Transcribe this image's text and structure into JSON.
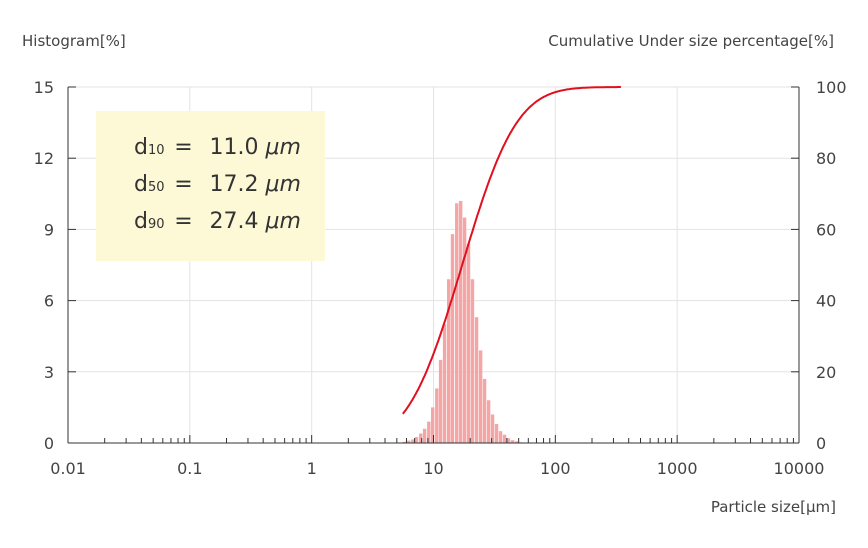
{
  "chart_data": {
    "type": "bar",
    "y_left_label": "Histogram[%]",
    "y_right_label": "Cumulative Under size percentage[%]",
    "xlabel": "Particle size[μm]",
    "x_scale": "log",
    "xlim": [
      0.01,
      10000
    ],
    "x_ticks": [
      "0.01",
      "0.1",
      "1",
      "10",
      "100",
      "1000",
      "10000"
    ],
    "ylim_left": [
      0,
      15
    ],
    "y_left_ticks": [
      "0",
      "3",
      "6",
      "9",
      "12",
      "15"
    ],
    "ylim_right": [
      0,
      100
    ],
    "y_right_ticks": [
      "0",
      "20",
      "40",
      "60",
      "80",
      "100"
    ],
    "grid": true,
    "histogram": {
      "color": "#f4a6a6",
      "x": [
        5.8,
        6.3,
        6.8,
        7.3,
        7.9,
        8.5,
        9.2,
        9.9,
        10.7,
        11.5,
        12.4,
        13.4,
        14.4,
        15.6,
        16.8,
        18.1,
        19.5,
        21.0,
        22.7,
        24.5,
        26.4,
        28.5,
        30.7,
        33.1,
        35.7,
        38.5,
        41.5,
        44.8,
        48.3,
        52.1
      ],
      "values": [
        0.05,
        0.1,
        0.15,
        0.25,
        0.4,
        0.6,
        0.9,
        1.5,
        2.3,
        3.5,
        5.0,
        6.9,
        8.8,
        10.1,
        10.2,
        9.5,
        8.4,
        6.9,
        5.3,
        3.9,
        2.7,
        1.8,
        1.2,
        0.8,
        0.5,
        0.35,
        0.2,
        0.12,
        0.07,
        0.03
      ]
    },
    "cumulative": {
      "color": "#e0101e",
      "median": 17.2,
      "sigma_log": 0.35
    }
  },
  "stats": [
    {
      "label": "d",
      "sub": "10",
      "eq": "=",
      "value": "11.0",
      "unit": "μm"
    },
    {
      "label": "d",
      "sub": "50",
      "eq": "=",
      "value": "17.2",
      "unit": "μm"
    },
    {
      "label": "d",
      "sub": "90",
      "eq": "=",
      "value": "27.4",
      "unit": "μm"
    }
  ]
}
